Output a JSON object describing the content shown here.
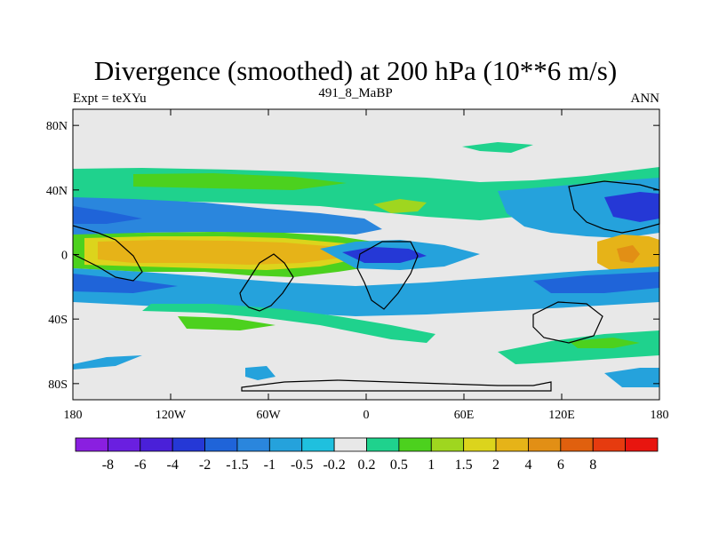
{
  "title": "Divergence (smoothed) at 200 hPa (10**6 m/s)",
  "subtitle_left": "Expt = teXYu",
  "subtitle_center": "491_8_MaBP",
  "subtitle_right": "ANN",
  "chart_data": {
    "type": "heatmap",
    "projection": "cylindrical-equidistant",
    "x_range": [
      -180,
      180
    ],
    "y_range": [
      -90,
      90
    ],
    "x_ticks": [
      {
        "value": -180,
        "label": "180"
      },
      {
        "value": -120,
        "label": "120W"
      },
      {
        "value": -60,
        "label": "60W"
      },
      {
        "value": 0,
        "label": "0"
      },
      {
        "value": 60,
        "label": "60E"
      },
      {
        "value": 120,
        "label": "120E"
      },
      {
        "value": 180,
        "label": "180"
      }
    ],
    "y_ticks": [
      {
        "value": 80,
        "label": "80N"
      },
      {
        "value": 40,
        "label": "40N"
      },
      {
        "value": 0,
        "label": "0"
      },
      {
        "value": -40,
        "label": "40S"
      },
      {
        "value": -80,
        "label": "80S"
      }
    ],
    "colorbar": {
      "labels": [
        "-8",
        "-6",
        "-4",
        "-2",
        "-1.5",
        "-1",
        "-0.5",
        "-0.2",
        "0.2",
        "0.5",
        "1",
        "1.5",
        "2",
        "4",
        "6",
        "8"
      ],
      "colors": [
        "#8a1fe0",
        "#6a1fe0",
        "#4a20d8",
        "#2538d6",
        "#1f64d9",
        "#2a86dd",
        "#25a2dc",
        "#1fc0de",
        "#e8e8e8",
        "#1fd28d",
        "#4cd11e",
        "#9fd61f",
        "#dcd41c",
        "#e6b318",
        "#e28f15",
        "#e0600e",
        "#e63b0f",
        "#e8150f"
      ]
    },
    "bands": [
      {
        "lat_range": [
          50,
          90
        ],
        "value_class": "neutral",
        "color": "#e8e8e8"
      },
      {
        "lat_range": [
          36,
          50
        ],
        "value_class": "0.2 to 1",
        "color": "#1fd28d"
      },
      {
        "lat_range": [
          20,
          36
        ],
        "value_class": "-1 to -0.5",
        "color": "#2a86dd"
      },
      {
        "lat_range": [
          -20,
          20
        ],
        "value_class": "1.5 to 4",
        "color": "#e6b318"
      },
      {
        "lat_range": [
          -45,
          -20
        ],
        "value_class": "-1 to -0.2",
        "color": "#25a2dc"
      },
      {
        "lat_range": [
          -90,
          -45
        ],
        "value_class": "neutral",
        "color": "#e8e8e8"
      }
    ]
  }
}
